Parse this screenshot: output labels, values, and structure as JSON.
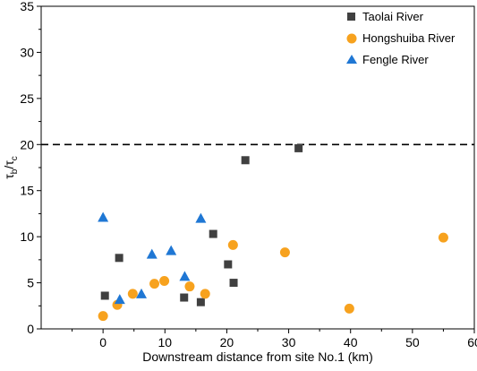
{
  "chart_data": {
    "type": "scatter",
    "xlabel": "Downstream distance from site No.1 (km)",
    "ylabel_main": "τ",
    "ylabel_sub_b": "b",
    "ylabel_slash": "/τ",
    "ylabel_sub_c": "c",
    "xlim": [
      -10,
      60
    ],
    "ylim": [
      0,
      35
    ],
    "xticks": [
      "0",
      "10",
      "20",
      "30",
      "40",
      "50",
      "60"
    ],
    "yticks": [
      "0",
      "5",
      "10",
      "15",
      "20",
      "25",
      "30",
      "35"
    ],
    "xtick_values": [
      0,
      10,
      20,
      30,
      40,
      50,
      60
    ],
    "ytick_values": [
      0,
      5,
      10,
      15,
      20,
      25,
      30,
      35
    ],
    "reference_line": {
      "y": 20,
      "style": "dashed"
    },
    "grid": false,
    "legend_position": "top-right",
    "series": [
      {
        "name": "Taolai River",
        "marker": "square",
        "color": "#404040",
        "points": [
          [
            0.3,
            3.6
          ],
          [
            2.6,
            7.7
          ],
          [
            13.1,
            3.4
          ],
          [
            15.8,
            2.9
          ],
          [
            17.8,
            10.3
          ],
          [
            20.2,
            7.0
          ],
          [
            21.1,
            5.0
          ],
          [
            23.0,
            18.3
          ],
          [
            31.6,
            19.6
          ]
        ]
      },
      {
        "name": "Hongshuiba River",
        "marker": "circle",
        "color": "#F7A21E",
        "points": [
          [
            0.0,
            1.4
          ],
          [
            2.3,
            2.6
          ],
          [
            4.8,
            3.8
          ],
          [
            8.3,
            4.9
          ],
          [
            9.9,
            5.2
          ],
          [
            14.0,
            4.6
          ],
          [
            16.5,
            3.8
          ],
          [
            21.0,
            9.1
          ],
          [
            29.4,
            8.3
          ],
          [
            39.8,
            2.2
          ],
          [
            55.0,
            9.9
          ]
        ]
      },
      {
        "name": "Fengle River",
        "marker": "triangle",
        "color": "#1F77D4",
        "points": [
          [
            0.0,
            12.1
          ],
          [
            2.7,
            3.2
          ],
          [
            6.2,
            3.8
          ],
          [
            7.9,
            8.1
          ],
          [
            11.0,
            8.5
          ],
          [
            13.2,
            5.7
          ],
          [
            15.8,
            12.0
          ]
        ]
      }
    ]
  }
}
